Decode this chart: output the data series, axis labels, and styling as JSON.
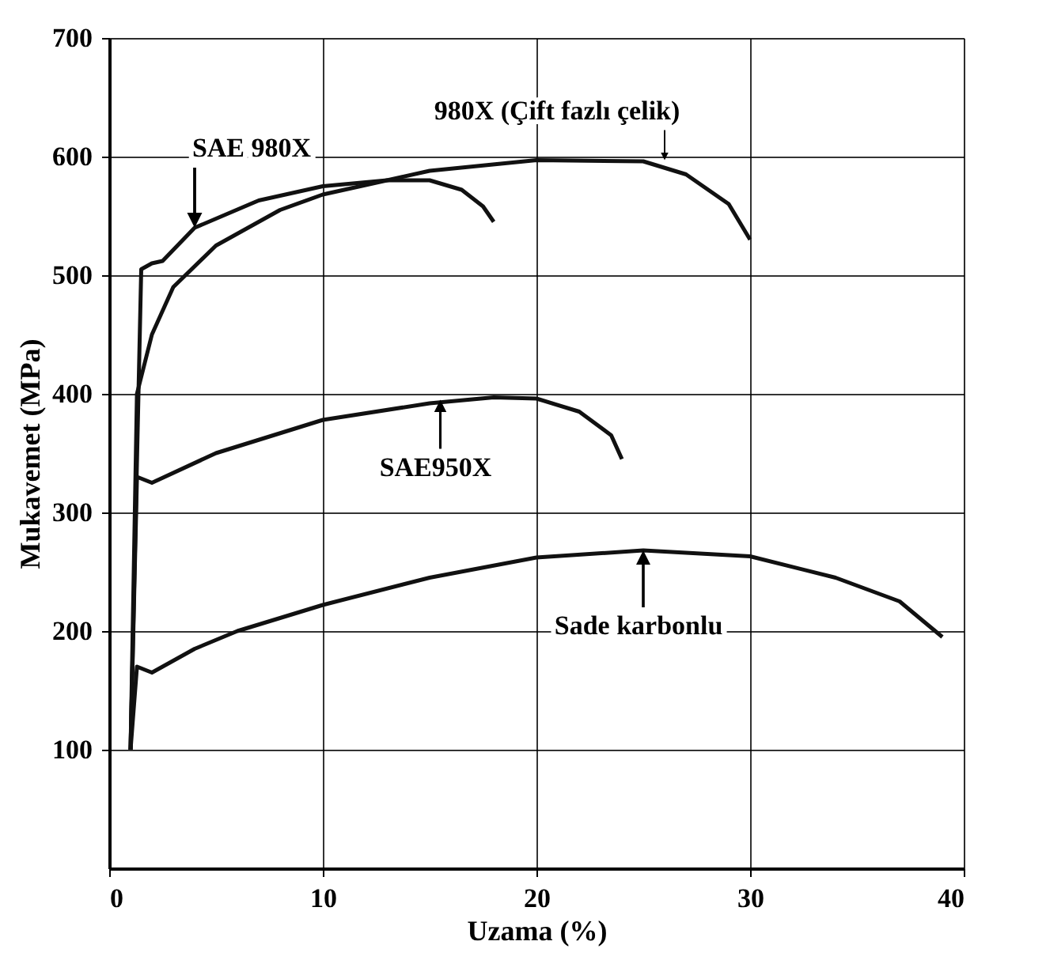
{
  "chart_data": {
    "type": "line",
    "xlabel": "Uzama (%)",
    "ylabel": "Mukavemet (MPa)",
    "xlim": [
      0,
      40
    ],
    "xticks": [
      0,
      10,
      20,
      30,
      40
    ],
    "ylim": [
      0,
      700
    ],
    "yticks": [
      100,
      200,
      300,
      400,
      500,
      600,
      700
    ],
    "grid": true,
    "marker": "none",
    "line_style": "solid",
    "series": [
      {
        "color": "#111111",
        "x": [
          1,
          1.5,
          2,
          2.5,
          4,
          7,
          10,
          13,
          15,
          16.5,
          17.5,
          18
        ],
        "values": [
          100,
          505,
          510,
          512,
          540,
          563,
          575,
          580,
          580,
          572,
          558,
          545
        ]
      },
      {
        "color": "#111111",
        "x": [
          1,
          1.3,
          2,
          3,
          5,
          8,
          10,
          15,
          20,
          25,
          27,
          29,
          30
        ],
        "values": [
          100,
          400,
          450,
          490,
          525,
          555,
          568,
          588,
          597,
          596,
          585,
          560,
          530
        ]
      },
      {
        "color": "#111111",
        "x": [
          1,
          1.3,
          2,
          5,
          10,
          15,
          18,
          20,
          22,
          23.5,
          24
        ],
        "values": [
          100,
          330,
          325,
          350,
          378,
          392,
          397,
          396,
          385,
          365,
          345
        ]
      },
      {
        "color": "#111111",
        "x": [
          1,
          1.3,
          2,
          4,
          6,
          10,
          15,
          20,
          25,
          30,
          34,
          37,
          39
        ],
        "values": [
          100,
          170,
          165,
          185,
          200,
          222,
          245,
          262,
          268,
          263,
          245,
          225,
          195
        ]
      }
    ],
    "annotations": [
      {
        "text": "SAE 980X",
        "x": 4,
        "y": 540
      },
      {
        "text": "980X (Çift fazlı çelik)",
        "x": 26,
        "y": 597
      },
      {
        "text": "SAE950X",
        "x": 15.5,
        "y": 395
      },
      {
        "text": "Sade karbonlu",
        "x": 25,
        "y": 268
      }
    ]
  }
}
